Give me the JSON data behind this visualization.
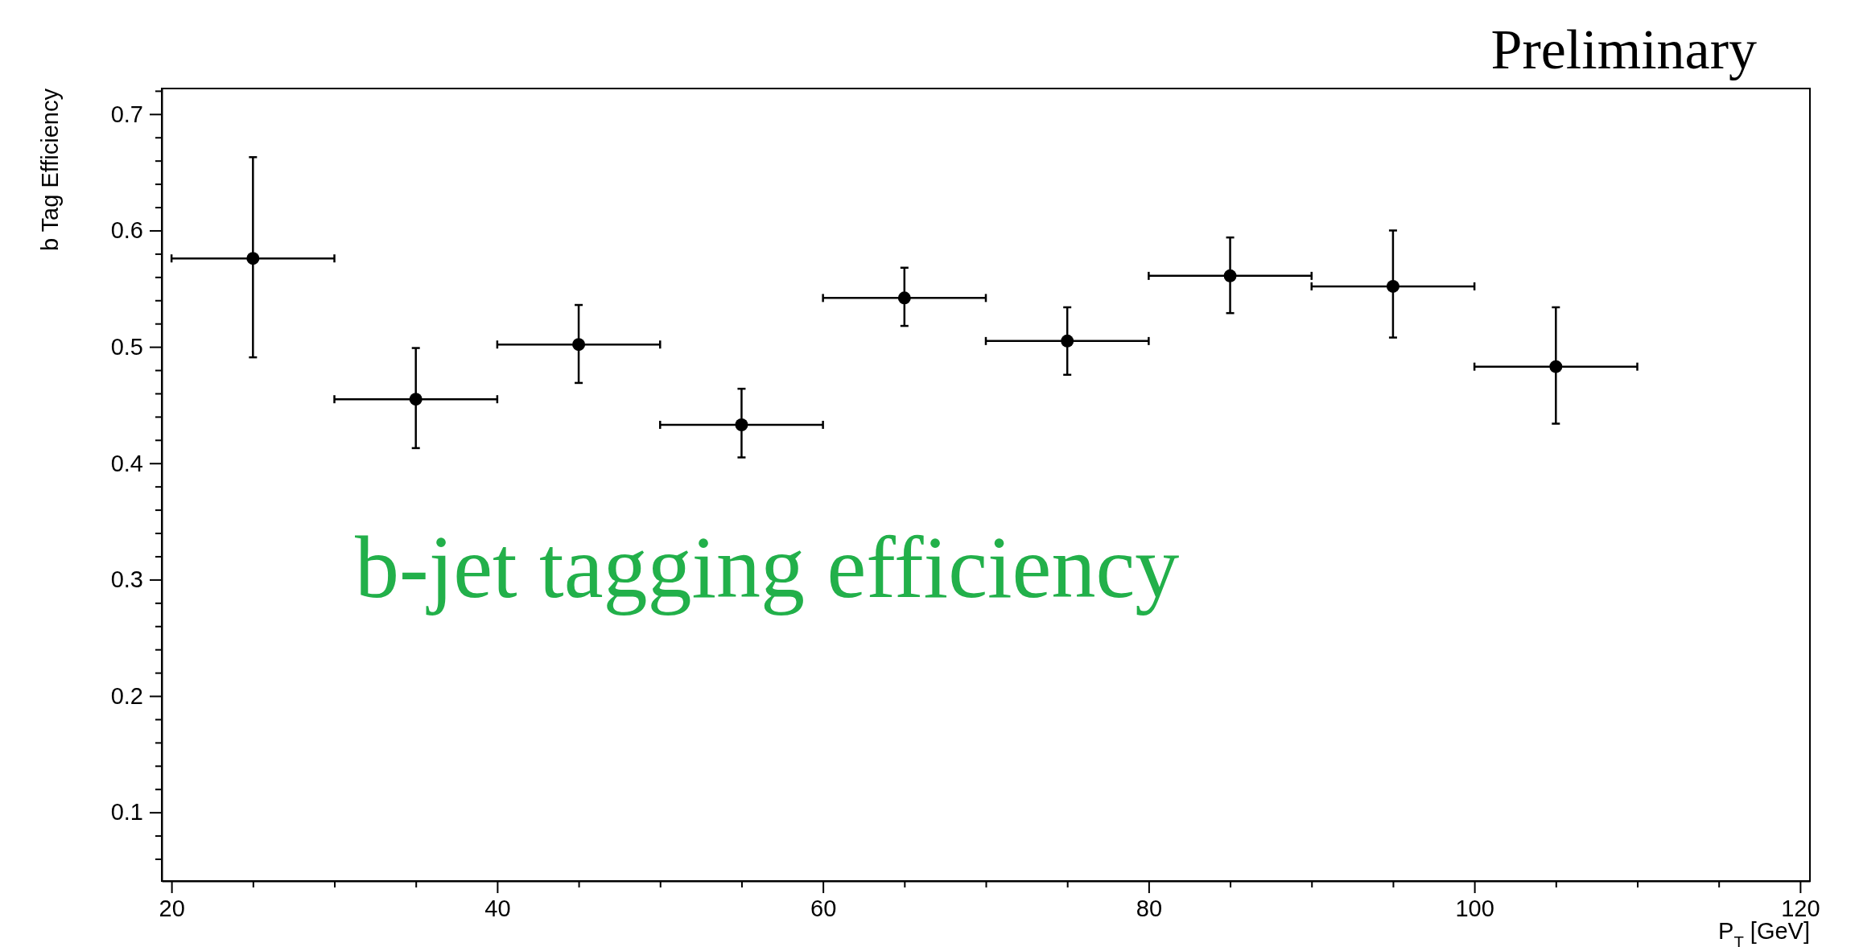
{
  "chart_data": {
    "type": "scatter",
    "xlabel": "P$_{T}$ [GeV]",
    "ylabel": "b Tag Efficiency",
    "annotations": [
      "Preliminary",
      "b-jet tagging efficiency"
    ],
    "x": [
      25,
      35,
      45,
      55,
      65,
      75,
      85,
      95,
      105
    ],
    "series": [
      {
        "color": "#000000",
        "values": [
          0.576,
          0.455,
          0.502,
          0.433,
          0.542,
          0.505,
          0.561,
          0.552,
          0.483
        ],
        "errors": [
          [
            0.491,
            0.663
          ],
          [
            0.413,
            0.499
          ],
          [
            0.469,
            0.536
          ],
          [
            0.405,
            0.464
          ],
          [
            0.518,
            0.568
          ],
          [
            0.476,
            0.534
          ],
          [
            0.529,
            0.594
          ],
          [
            0.508,
            0.6
          ],
          [
            0.434,
            0.534
          ]
        ],
        "xerrors": [
          5,
          5,
          5,
          5,
          5,
          5,
          5,
          5,
          5
        ]
      }
    ],
    "marker": "circle",
    "grid": false,
    "legend": false,
    "xlim": [
      19.4,
      120.6
    ],
    "ylim": [
      0.041,
      0.722
    ],
    "xticks": [
      20,
      {
        "value": 25,
        "label": null
      },
      {
        "value": 30,
        "label": null
      },
      {
        "value": 35,
        "label": null
      },
      40,
      {
        "value": 45,
        "label": null
      },
      {
        "value": 50,
        "label": null
      },
      {
        "value": 55,
        "label": null
      },
      60,
      {
        "value": 65,
        "label": null
      },
      {
        "value": 70,
        "label": null
      },
      {
        "value": 75,
        "label": null
      },
      80,
      {
        "value": 85,
        "label": null
      },
      {
        "value": 90,
        "label": null
      },
      {
        "value": 95,
        "label": null
      },
      100,
      {
        "value": 105,
        "label": null
      },
      {
        "value": 110,
        "label": null
      },
      {
        "value": 115,
        "label": null
      },
      120
    ],
    "yticks": [
      {
        "value": 0.06,
        "label": null
      },
      {
        "value": 0.08,
        "label": null
      },
      0.1,
      {
        "value": 0.12,
        "label": null
      },
      {
        "value": 0.14,
        "label": null
      },
      {
        "value": 0.16,
        "label": null
      },
      {
        "value": 0.18,
        "label": null
      },
      0.2,
      {
        "value": 0.22,
        "label": null
      },
      {
        "value": 0.24,
        "label": null
      },
      {
        "value": 0.26,
        "label": null
      },
      {
        "value": 0.28,
        "label": null
      },
      0.3,
      {
        "value": 0.32,
        "label": null
      },
      {
        "value": 0.34,
        "label": null
      },
      {
        "value": 0.36,
        "label": null
      },
      {
        "value": 0.38,
        "label": null
      },
      0.4,
      {
        "value": 0.42,
        "label": null
      },
      {
        "value": 0.44,
        "label": null
      },
      {
        "value": 0.46,
        "label": null
      },
      {
        "value": 0.48,
        "label": null
      },
      0.5,
      {
        "value": 0.52,
        "label": null
      },
      {
        "value": 0.54,
        "label": null
      },
      {
        "value": 0.56,
        "label": null
      },
      {
        "value": 0.58,
        "label": null
      },
      0.6,
      {
        "value": 0.62,
        "label": null
      },
      {
        "value": 0.64,
        "label": null
      },
      {
        "value": 0.66,
        "label": null
      },
      {
        "value": 0.68,
        "label": null
      },
      0.7,
      {
        "value": 0.72,
        "label": null
      }
    ]
  }
}
